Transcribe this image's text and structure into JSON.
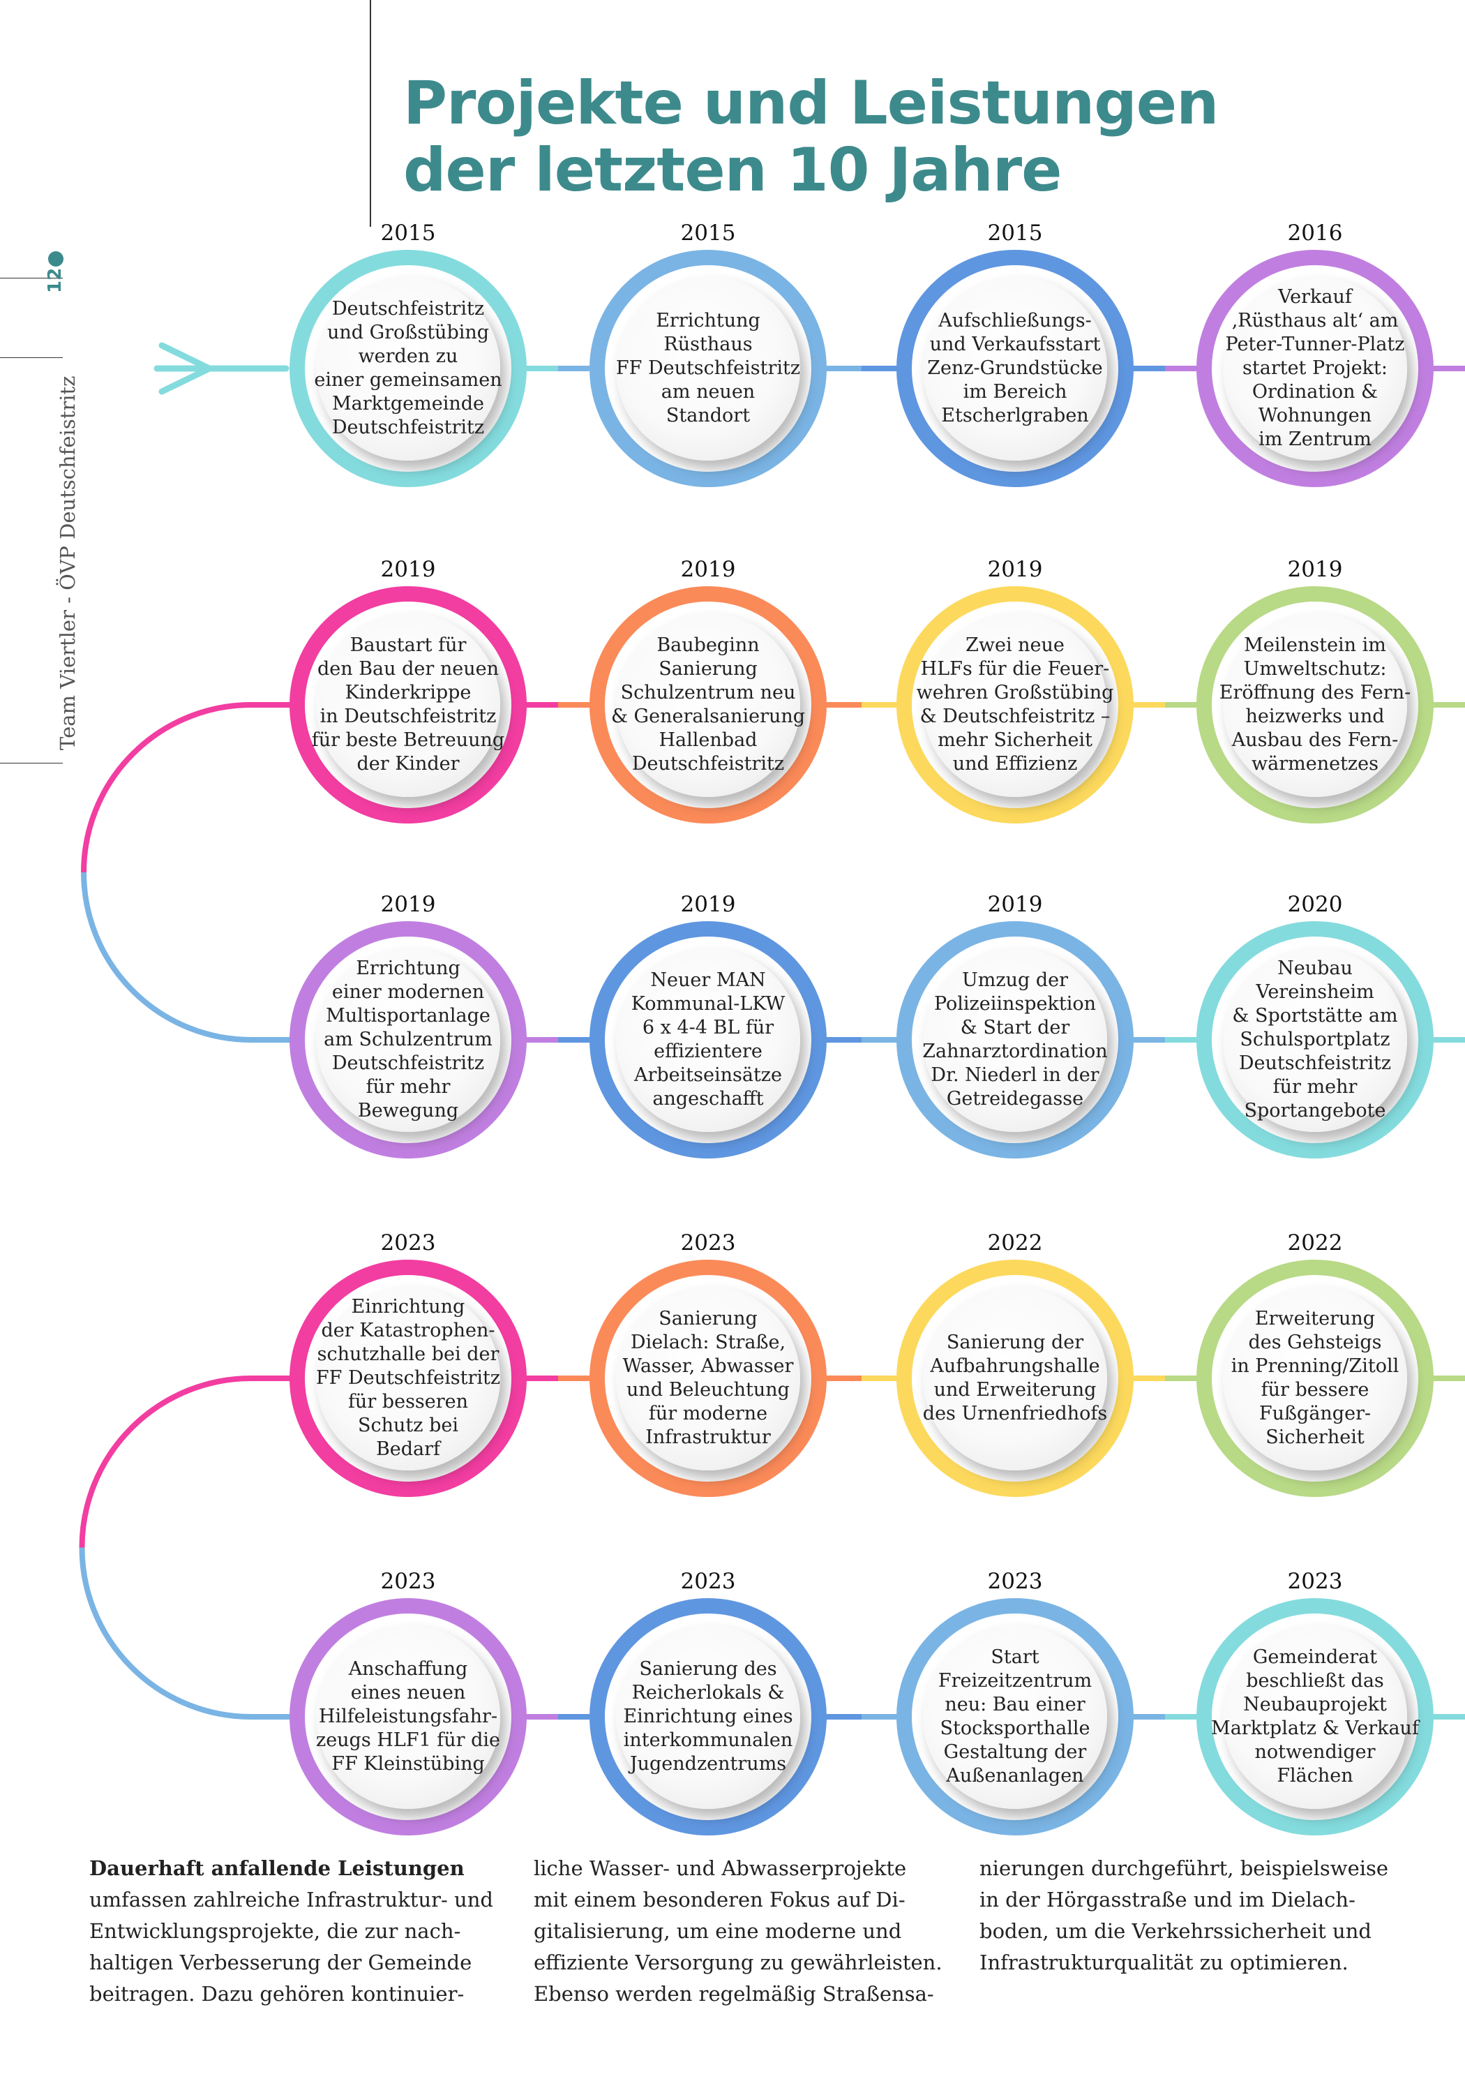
{
  "title": {
    "line1": "Projekte und Leistungen",
    "line2": "der letzten 10 Jahre"
  },
  "side_label": "Team Viertler - ÖVP Deutschfeistritz",
  "page_number": "12",
  "colors": {
    "title": "#3d8a8c",
    "cyan": "#84dbdd",
    "lightblue": "#7ab4e4",
    "blue": "#5f96e0",
    "purple": "#c07fe0",
    "magenta": "#f23da1",
    "orange": "#fb8a59",
    "yellow": "#fcd95d",
    "green": "#b8d986"
  },
  "rows": [
    {
      "nodes": [
        {
          "year": "2015",
          "color": "cyan",
          "text": "Deutschfeistritz\nund Großstübing\nwerden zu\neiner gemeinsamen\nMarktgemeinde\nDeutschfeistritz"
        },
        {
          "year": "2015",
          "color": "lightblue",
          "text": "Errichtung\nRüsthaus\nFF Deutschfeistritz\nam neuen\nStandort"
        },
        {
          "year": "2015",
          "color": "blue",
          "text": "Aufschließungs-\nund Verkaufsstart\nZenz-Grundstücke\nim Bereich\nEtscherlgraben"
        },
        {
          "year": "2016",
          "color": "purple",
          "text": "Verkauf\n‚Rüsthaus alt‘ am\nPeter-Tunner-Platz\nstartet Projekt:\nOrdination &\nWohnungen\nim Zentrum"
        }
      ]
    },
    {
      "nodes": [
        {
          "year": "2019",
          "color": "magenta",
          "text": "Baustart für\nden Bau der neuen\nKinderkrippe\nin Deutschfeistritz\nfür beste Betreuung\nder Kinder"
        },
        {
          "year": "2019",
          "color": "orange",
          "text": "Baubeginn\nSanierung\nSchulzentrum neu\n& Generalsanierung\nHallenbad\nDeutschfeistritz"
        },
        {
          "year": "2019",
          "color": "yellow",
          "text": "Zwei neue\nHLFs für die Feuer-\nwehren Großstübing\n& Deutschfeistritz –\nmehr Sicherheit\nund Effizienz"
        },
        {
          "year": "2019",
          "color": "green",
          "text": "Meilenstein im\nUmweltschutz:\nEröffnung des Fern-\nheizwerks und\nAusbau des Fern-\nwärmenetzes"
        }
      ]
    },
    {
      "nodes": [
        {
          "year": "2019",
          "color": "purple",
          "text": "Errichtung\neiner modernen\nMultisportanlage\nam Schulzentrum\nDeutschfeistritz\nfür mehr\nBewegung"
        },
        {
          "year": "2019",
          "color": "blue",
          "text": "Neuer MAN\nKommunal-LKW\n6 x 4-4 BL für\neffizientere\nArbeitseinsätze\nangeschafft"
        },
        {
          "year": "2019",
          "color": "lightblue",
          "text": "Umzug der\nPolizeiinspektion\n& Start der\nZahnarztordination\nDr. Niederl in der\nGetreidegasse"
        },
        {
          "year": "2020",
          "color": "cyan",
          "text": "Neubau\nVereinsheim\n& Sportstätte am\nSchulsportplatz\nDeutschfeistritz\nfür mehr\nSportangebote"
        }
      ]
    },
    {
      "nodes": [
        {
          "year": "2023",
          "color": "magenta",
          "text": "Einrichtung\nder Katastrophen-\nschutzhalle bei der\nFF Deutschfeistritz\nfür besseren\nSchutz bei\nBedarf"
        },
        {
          "year": "2023",
          "color": "orange",
          "text": "Sanierung\nDielach: Straße,\nWasser, Abwasser\nund Beleuchtung\nfür moderne\nInfrastruktur"
        },
        {
          "year": "2022",
          "color": "yellow",
          "text": "Sanierung der\nAufbahrungshalle\nund Erweiterung\ndes Urnenfriedhofs"
        },
        {
          "year": "2022",
          "color": "green",
          "text": "Erweiterung\ndes Gehsteigs\nin Prenning/Zitoll\nfür bessere\nFußgänger-\nSicherheit"
        }
      ]
    },
    {
      "nodes": [
        {
          "year": "2023",
          "color": "purple",
          "text": "Anschaffung\neines neuen\nHilfeleistungsfahr-\nzeugs HLF1 für die\nFF Kleinstübing"
        },
        {
          "year": "2023",
          "color": "blue",
          "text": "Sanierung des\nReicherlokals &\nEinrichtung eines\ninterkommunalen\nJugendzentrums"
        },
        {
          "year": "2023",
          "color": "lightblue",
          "text": "Start\nFreizeitzentrum\nneu: Bau einer\nStocksporthalle\nGestaltung der\nAußenanlagen"
        },
        {
          "year": "2023",
          "color": "cyan",
          "text": "Gemeinderat\nbeschließt das\nNeubauprojekt\nMarktplatz & Verkauf\nnotwendiger\nFlächen"
        }
      ]
    }
  ],
  "body": {
    "heading": "Dauerhaft anfallende Leistungen",
    "col1": [
      "umfassen zahlreiche Infrastruktur- und",
      "Entwicklungsprojekte, die zur nach-",
      "haltigen Verbesserung der Gemeinde",
      "beitragen. Dazu gehören kontinuier-"
    ],
    "col2": [
      "liche Wasser- und Abwasserprojekte",
      "mit einem besonderen Fokus auf Di-",
      "gitalisierung, um eine moderne und",
      "effiziente Versorgung zu gewährleisten.",
      "Ebenso werden regelmäßig Straßensa-"
    ],
    "col3": [
      "nierungen durchgeführt, beispielsweise",
      "in der Hörgasstraße und im Dielach-",
      "boden, um die Verkehrssicherheit und",
      "Infrastrukturqualität zu optimieren."
    ]
  }
}
